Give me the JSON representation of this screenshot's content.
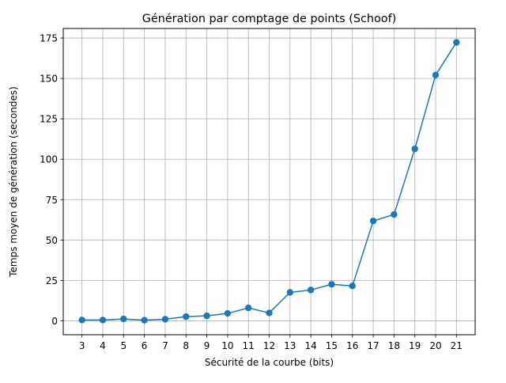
{
  "chart_data": {
    "type": "line",
    "title": "Génération par comptage de points (Schoof)",
    "xlabel": "Sécurité de la courbe (bits)",
    "ylabel": "Temps moyen de génération (secondes)",
    "x": [
      3,
      4,
      5,
      6,
      7,
      8,
      9,
      10,
      11,
      12,
      13,
      14,
      15,
      16,
      17,
      18,
      19,
      20,
      21
    ],
    "series": [
      {
        "values": [
          0.5,
          0.5,
          1.2,
          0.4,
          1.0,
          2.6,
          3.1,
          4.6,
          8.0,
          4.9,
          17.6,
          19.1,
          22.6,
          21.6,
          61.8,
          65.8,
          106.4,
          152.1,
          172.3
        ],
        "color": "#1f77b4",
        "marker": "circle"
      }
    ],
    "xlim": [
      2.1,
      21.9
    ],
    "ylim": [
      -8.6,
      180.9
    ],
    "xticks": [
      "3",
      "4",
      "5",
      "6",
      "7",
      "8",
      "9",
      "10",
      "11",
      "12",
      "13",
      "14",
      "15",
      "16",
      "17",
      "18",
      "19",
      "20",
      "21"
    ],
    "yticks": [
      "0",
      "25",
      "50",
      "75",
      "100",
      "125",
      "150",
      "175"
    ],
    "grid": true,
    "grid_color": "#b0b0b0",
    "axis_color": "#000000"
  }
}
